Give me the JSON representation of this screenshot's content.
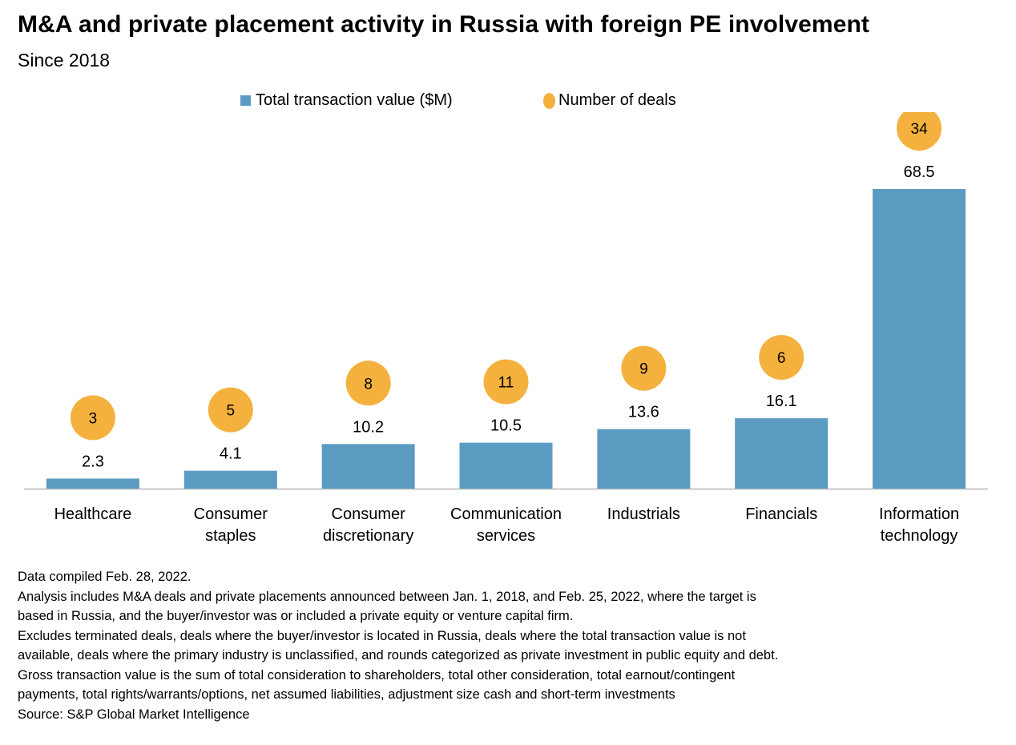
{
  "title": "M&A and private placement activity in Russia with foreign PE involvement",
  "subtitle": "Since 2018",
  "colors": {
    "bar": "#5b9bc1",
    "bubble": "#f4b13e",
    "axis": "#c8c8c8"
  },
  "chart_data": {
    "type": "bar",
    "categories": [
      [
        "Healthcare"
      ],
      [
        "Consumer",
        "staples"
      ],
      [
        "Consumer",
        "discretionary"
      ],
      [
        "Communication",
        "services"
      ],
      [
        "Industrials"
      ],
      [
        "Financials"
      ],
      [
        "Information",
        "technology"
      ]
    ],
    "series": [
      {
        "name": "Total transaction value ($M)",
        "type": "bar",
        "values": [
          2.3,
          4.1,
          10.2,
          10.5,
          13.6,
          16.1,
          68.5
        ]
      },
      {
        "name": "Number of deals",
        "type": "bubble",
        "values": [
          3,
          5,
          8,
          11,
          9,
          6,
          34
        ]
      }
    ],
    "legend": "top-center",
    "grid": false
  },
  "notes": [
    "Data compiled Feb. 28, 2022.",
    "Analysis includes M&A deals and private placements announced between Jan. 1, 2018, and Feb. 25, 2022, where the target is",
    "based in Russia, and the buyer/investor was or included a private equity or venture capital firm.",
    "Excludes terminated deals, deals where the buyer/investor is located in Russia, deals where the total transaction value is not",
    "available, deals where the primary industry is unclassified, and rounds categorized as private investment in public equity and debt.",
    "Gross transaction value is the sum of total consideration to shareholders, total other consideration, total earnout/contingent",
    "payments, total rights/warrants/options, net assumed liabilities, adjustment size cash and short-term investments",
    "Source: S&P Global Market Intelligence"
  ]
}
